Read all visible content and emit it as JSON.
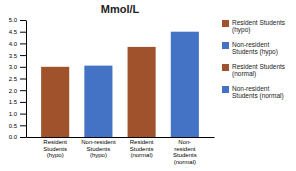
{
  "chart_data": {
    "type": "bar",
    "title": "Mmol/L",
    "categories": [
      "Resident\nStudents\n(hypo)",
      "Non-resident\nStudents\n(hypo)",
      "Resident\nStudents\n(normal)",
      "Non-\nresident\nStudents\n(normal)"
    ],
    "series": [
      {
        "name": "Resident Students\n(hypo)",
        "color": "#A0522D",
        "values": [
          3.0,
          null,
          null,
          null
        ]
      },
      {
        "name": "Non-resident\nStudents (hypo)",
        "color": "#4472C4",
        "values": [
          null,
          3.05,
          null,
          null
        ]
      },
      {
        "name": "Resident Students\n(normal)",
        "color": "#A0522D",
        "values": [
          null,
          null,
          3.85,
          null
        ]
      },
      {
        "name": "Non-resident\nStudents (normal)",
        "color": "#4472C4",
        "values": [
          null,
          null,
          null,
          4.5
        ]
      }
    ],
    "stacked": true,
    "ylim": [
      0,
      5
    ],
    "yticks": [
      {
        "value": 0,
        "label": "0.0"
      },
      0.5,
      {
        "value": 1.0,
        "label": "1.0"
      },
      1.5,
      {
        "value": 2.0,
        "label": "2.0"
      },
      2.5,
      {
        "value": 3.0,
        "label": "3.0"
      },
      3.5,
      {
        "value": 4.0,
        "label": "4.0"
      },
      4.5,
      {
        "value": 5.0,
        "label": "5.0"
      }
    ],
    "grid": false,
    "legend": "right"
  }
}
